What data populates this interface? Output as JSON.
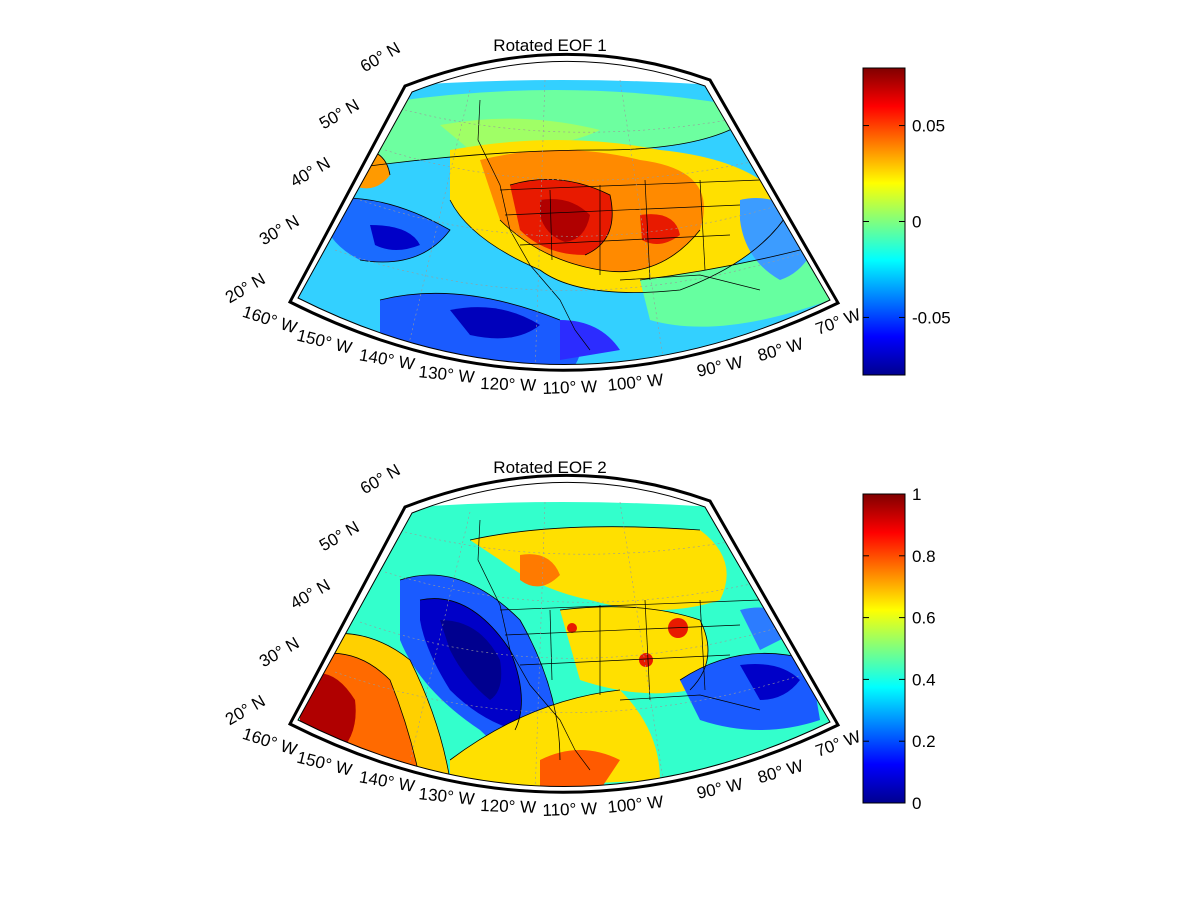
{
  "figure": {
    "panels": [
      {
        "title": "Rotated EOF 1",
        "colorbar": {
          "min": -0.08,
          "max": 0.08,
          "ticks": [
            {
              "value": 0.05,
              "label": "0.05"
            },
            {
              "value": 0,
              "label": "0"
            },
            {
              "value": -0.05,
              "label": "-0.05"
            }
          ]
        },
        "lat_labels": [
          "60° N",
          "50° N",
          "40° N",
          "30° N",
          "20° N"
        ],
        "lon_labels": [
          "160° W",
          "150° W",
          "140° W",
          "130° W",
          "120° W",
          "110° W",
          "100° W",
          "90° W",
          "80° W",
          "70° W"
        ]
      },
      {
        "title": "Rotated EOF 2",
        "colorbar": {
          "min": 0,
          "max": 1,
          "ticks": [
            {
              "value": 1,
              "label": "1"
            },
            {
              "value": 0.8,
              "label": "0.8"
            },
            {
              "value": 0.6,
              "label": "0.6"
            },
            {
              "value": 0.4,
              "label": "0.4"
            },
            {
              "value": 0.2,
              "label": "0.2"
            },
            {
              "value": 0,
              "label": "0"
            }
          ]
        },
        "lat_labels": [
          "60° N",
          "50° N",
          "40° N",
          "30° N",
          "20° N"
        ],
        "lon_labels": [
          "160° W",
          "150° W",
          "140° W",
          "130° W",
          "120° W",
          "110° W",
          "100° W",
          "90° W",
          "80° W",
          "70° W"
        ]
      }
    ],
    "colormap": "jet"
  }
}
